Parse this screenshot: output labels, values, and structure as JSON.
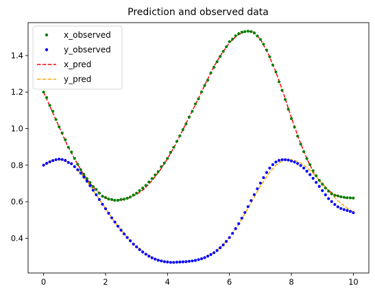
{
  "chart_data": {
    "type": "scatter",
    "title": "Prediction and observed data",
    "xlabel": "",
    "ylabel": "",
    "xlim": [
      -0.5,
      10.5
    ],
    "ylim": [
      0.21,
      1.58
    ],
    "xticks": [
      0,
      2,
      4,
      6,
      8,
      10
    ],
    "yticks": [
      0.4,
      0.6,
      0.8,
      1.0,
      1.2,
      1.4
    ],
    "grid": false,
    "legend_position": "top-left",
    "series": [
      {
        "name": "x_observed",
        "kind": "scatter",
        "color": "#008000",
        "x": [
          0.0,
          0.1,
          0.2,
          0.3,
          0.4,
          0.5,
          0.6,
          0.7,
          0.8,
          0.9,
          1.0,
          1.1,
          1.2,
          1.3,
          1.4,
          1.5,
          1.6,
          1.7,
          1.8,
          1.9,
          2.0,
          2.1,
          2.2,
          2.3,
          2.4,
          2.5,
          2.6,
          2.7,
          2.8,
          2.9,
          3.0,
          3.1,
          3.2,
          3.3,
          3.4,
          3.5,
          3.6,
          3.7,
          3.8,
          3.9,
          4.0,
          4.1,
          4.2,
          4.3,
          4.4,
          4.5,
          4.6,
          4.7,
          4.8,
          4.9,
          5.0,
          5.1,
          5.2,
          5.3,
          5.4,
          5.5,
          5.6,
          5.7,
          5.8,
          5.9,
          6.0,
          6.1,
          6.2,
          6.3,
          6.4,
          6.5,
          6.6,
          6.7,
          6.8,
          6.9,
          7.0,
          7.1,
          7.2,
          7.3,
          7.4,
          7.5,
          7.6,
          7.7,
          7.8,
          7.9,
          8.0,
          8.1,
          8.2,
          8.3,
          8.4,
          8.5,
          8.6,
          8.7,
          8.8,
          8.9,
          9.0,
          9.1,
          9.2,
          9.3,
          9.4,
          9.5,
          9.6,
          9.7,
          9.8,
          9.9,
          10.0
        ],
        "y": [
          1.2,
          1.17,
          1.127,
          1.095,
          1.05,
          1.01,
          0.976,
          0.939,
          0.898,
          0.872,
          0.837,
          0.805,
          0.775,
          0.75,
          0.726,
          0.705,
          0.683,
          0.667,
          0.647,
          0.63,
          0.623,
          0.615,
          0.612,
          0.608,
          0.608,
          0.612,
          0.614,
          0.619,
          0.626,
          0.637,
          0.647,
          0.661,
          0.675,
          0.689,
          0.708,
          0.727,
          0.747,
          0.765,
          0.792,
          0.812,
          0.837,
          0.87,
          0.898,
          0.93,
          0.961,
          0.995,
          1.026,
          1.063,
          1.095,
          1.135,
          1.163,
          1.201,
          1.236,
          1.265,
          1.305,
          1.336,
          1.366,
          1.395,
          1.423,
          1.448,
          1.476,
          1.49,
          1.508,
          1.52,
          1.528,
          1.531,
          1.533,
          1.531,
          1.524,
          1.507,
          1.488,
          1.462,
          1.43,
          1.393,
          1.348,
          1.31,
          1.256,
          1.21,
          1.159,
          1.106,
          1.055,
          1.008,
          0.959,
          0.915,
          0.874,
          0.836,
          0.803,
          0.77,
          0.742,
          0.717,
          0.696,
          0.675,
          0.658,
          0.643,
          0.635,
          0.632,
          0.627,
          0.624,
          0.622,
          0.621,
          0.62
        ]
      },
      {
        "name": "y_observed",
        "kind": "scatter",
        "color": "#0000ff",
        "x": [
          0.0,
          0.1,
          0.2,
          0.3,
          0.4,
          0.5,
          0.6,
          0.7,
          0.8,
          0.9,
          1.0,
          1.1,
          1.2,
          1.3,
          1.4,
          1.5,
          1.6,
          1.7,
          1.8,
          1.9,
          2.0,
          2.1,
          2.2,
          2.3,
          2.4,
          2.5,
          2.6,
          2.7,
          2.8,
          2.9,
          3.0,
          3.1,
          3.2,
          3.3,
          3.4,
          3.5,
          3.6,
          3.7,
          3.8,
          3.9,
          4.0,
          4.1,
          4.2,
          4.3,
          4.4,
          4.5,
          4.6,
          4.7,
          4.8,
          4.9,
          5.0,
          5.1,
          5.2,
          5.3,
          5.4,
          5.5,
          5.6,
          5.7,
          5.8,
          5.9,
          6.0,
          6.1,
          6.2,
          6.3,
          6.4,
          6.5,
          6.6,
          6.7,
          6.8,
          6.9,
          7.0,
          7.1,
          7.2,
          7.3,
          7.4,
          7.5,
          7.6,
          7.7,
          7.8,
          7.9,
          8.0,
          8.1,
          8.2,
          8.3,
          8.4,
          8.5,
          8.6,
          8.7,
          8.8,
          8.9,
          9.0,
          9.1,
          9.2,
          9.3,
          9.4,
          9.5,
          9.6,
          9.7,
          9.8,
          9.9,
          10.0
        ],
        "y": [
          0.8,
          0.81,
          0.818,
          0.825,
          0.83,
          0.833,
          0.831,
          0.826,
          0.815,
          0.808,
          0.792,
          0.775,
          0.756,
          0.735,
          0.712,
          0.688,
          0.663,
          0.638,
          0.612,
          0.586,
          0.562,
          0.537,
          0.512,
          0.489,
          0.466,
          0.444,
          0.424,
          0.404,
          0.386,
          0.368,
          0.353,
          0.338,
          0.325,
          0.313,
          0.302,
          0.293,
          0.286,
          0.28,
          0.276,
          0.272,
          0.27,
          0.268,
          0.268,
          0.269,
          0.27,
          0.271,
          0.272,
          0.274,
          0.276,
          0.279,
          0.283,
          0.288,
          0.294,
          0.302,
          0.311,
          0.321,
          0.333,
          0.348,
          0.364,
          0.383,
          0.404,
          0.427,
          0.453,
          0.48,
          0.51,
          0.541,
          0.573,
          0.606,
          0.639,
          0.671,
          0.702,
          0.732,
          0.76,
          0.784,
          0.803,
          0.817,
          0.826,
          0.83,
          0.83,
          0.828,
          0.823,
          0.817,
          0.809,
          0.798,
          0.784,
          0.767,
          0.748,
          0.728,
          0.706,
          0.684,
          0.661,
          0.638,
          0.617,
          0.601,
          0.585,
          0.572,
          0.563,
          0.557,
          0.552,
          0.547,
          0.54
        ]
      },
      {
        "name": "x_pred",
        "kind": "line",
        "style": "dashed",
        "color": "#ff0000",
        "x": [
          0,
          0.25,
          0.5,
          0.75,
          1,
          1.25,
          1.5,
          1.75,
          2,
          2.25,
          2.5,
          2.75,
          3,
          3.25,
          3.5,
          3.75,
          4,
          4.25,
          4.5,
          4.75,
          5,
          5.25,
          5.5,
          5.75,
          6,
          6.25,
          6.5,
          6.75,
          7,
          7.25,
          7.5,
          7.75,
          8,
          8.25,
          8.5,
          8.75,
          9,
          9.25,
          9.5,
          9.75,
          10
        ],
        "y": [
          1.2,
          1.105,
          1.01,
          0.915,
          0.835,
          0.76,
          0.7,
          0.655,
          0.62,
          0.608,
          0.61,
          0.62,
          0.64,
          0.67,
          0.715,
          0.77,
          0.835,
          0.91,
          0.995,
          1.08,
          1.165,
          1.255,
          1.34,
          1.41,
          1.47,
          1.51,
          1.53,
          1.532,
          1.49,
          1.41,
          1.31,
          1.19,
          1.06,
          0.94,
          0.835,
          0.75,
          0.695,
          0.655,
          0.63,
          0.62,
          0.62
        ]
      },
      {
        "name": "y_pred",
        "kind": "line",
        "style": "dashed",
        "color": "#ffa500",
        "x": [
          0,
          0.25,
          0.5,
          0.75,
          1,
          1.25,
          1.5,
          1.75,
          2,
          2.25,
          2.5,
          2.75,
          3,
          3.25,
          3.5,
          3.75,
          4,
          4.25,
          4.5,
          4.75,
          5,
          5.25,
          5.5,
          5.75,
          6,
          6.25,
          6.5,
          6.75,
          7,
          7.25,
          7.5,
          7.75,
          8,
          8.25,
          8.5,
          8.75,
          9,
          9.25,
          9.5,
          9.75,
          10
        ],
        "y": [
          0.8,
          0.825,
          0.833,
          0.82,
          0.79,
          0.745,
          0.688,
          0.625,
          0.563,
          0.5,
          0.445,
          0.395,
          0.355,
          0.322,
          0.296,
          0.278,
          0.27,
          0.268,
          0.27,
          0.273,
          0.283,
          0.298,
          0.322,
          0.357,
          0.405,
          0.465,
          0.535,
          0.61,
          0.685,
          0.75,
          0.8,
          0.828,
          0.83,
          0.818,
          0.788,
          0.748,
          0.7,
          0.65,
          0.605,
          0.57,
          0.545
        ]
      }
    ]
  }
}
